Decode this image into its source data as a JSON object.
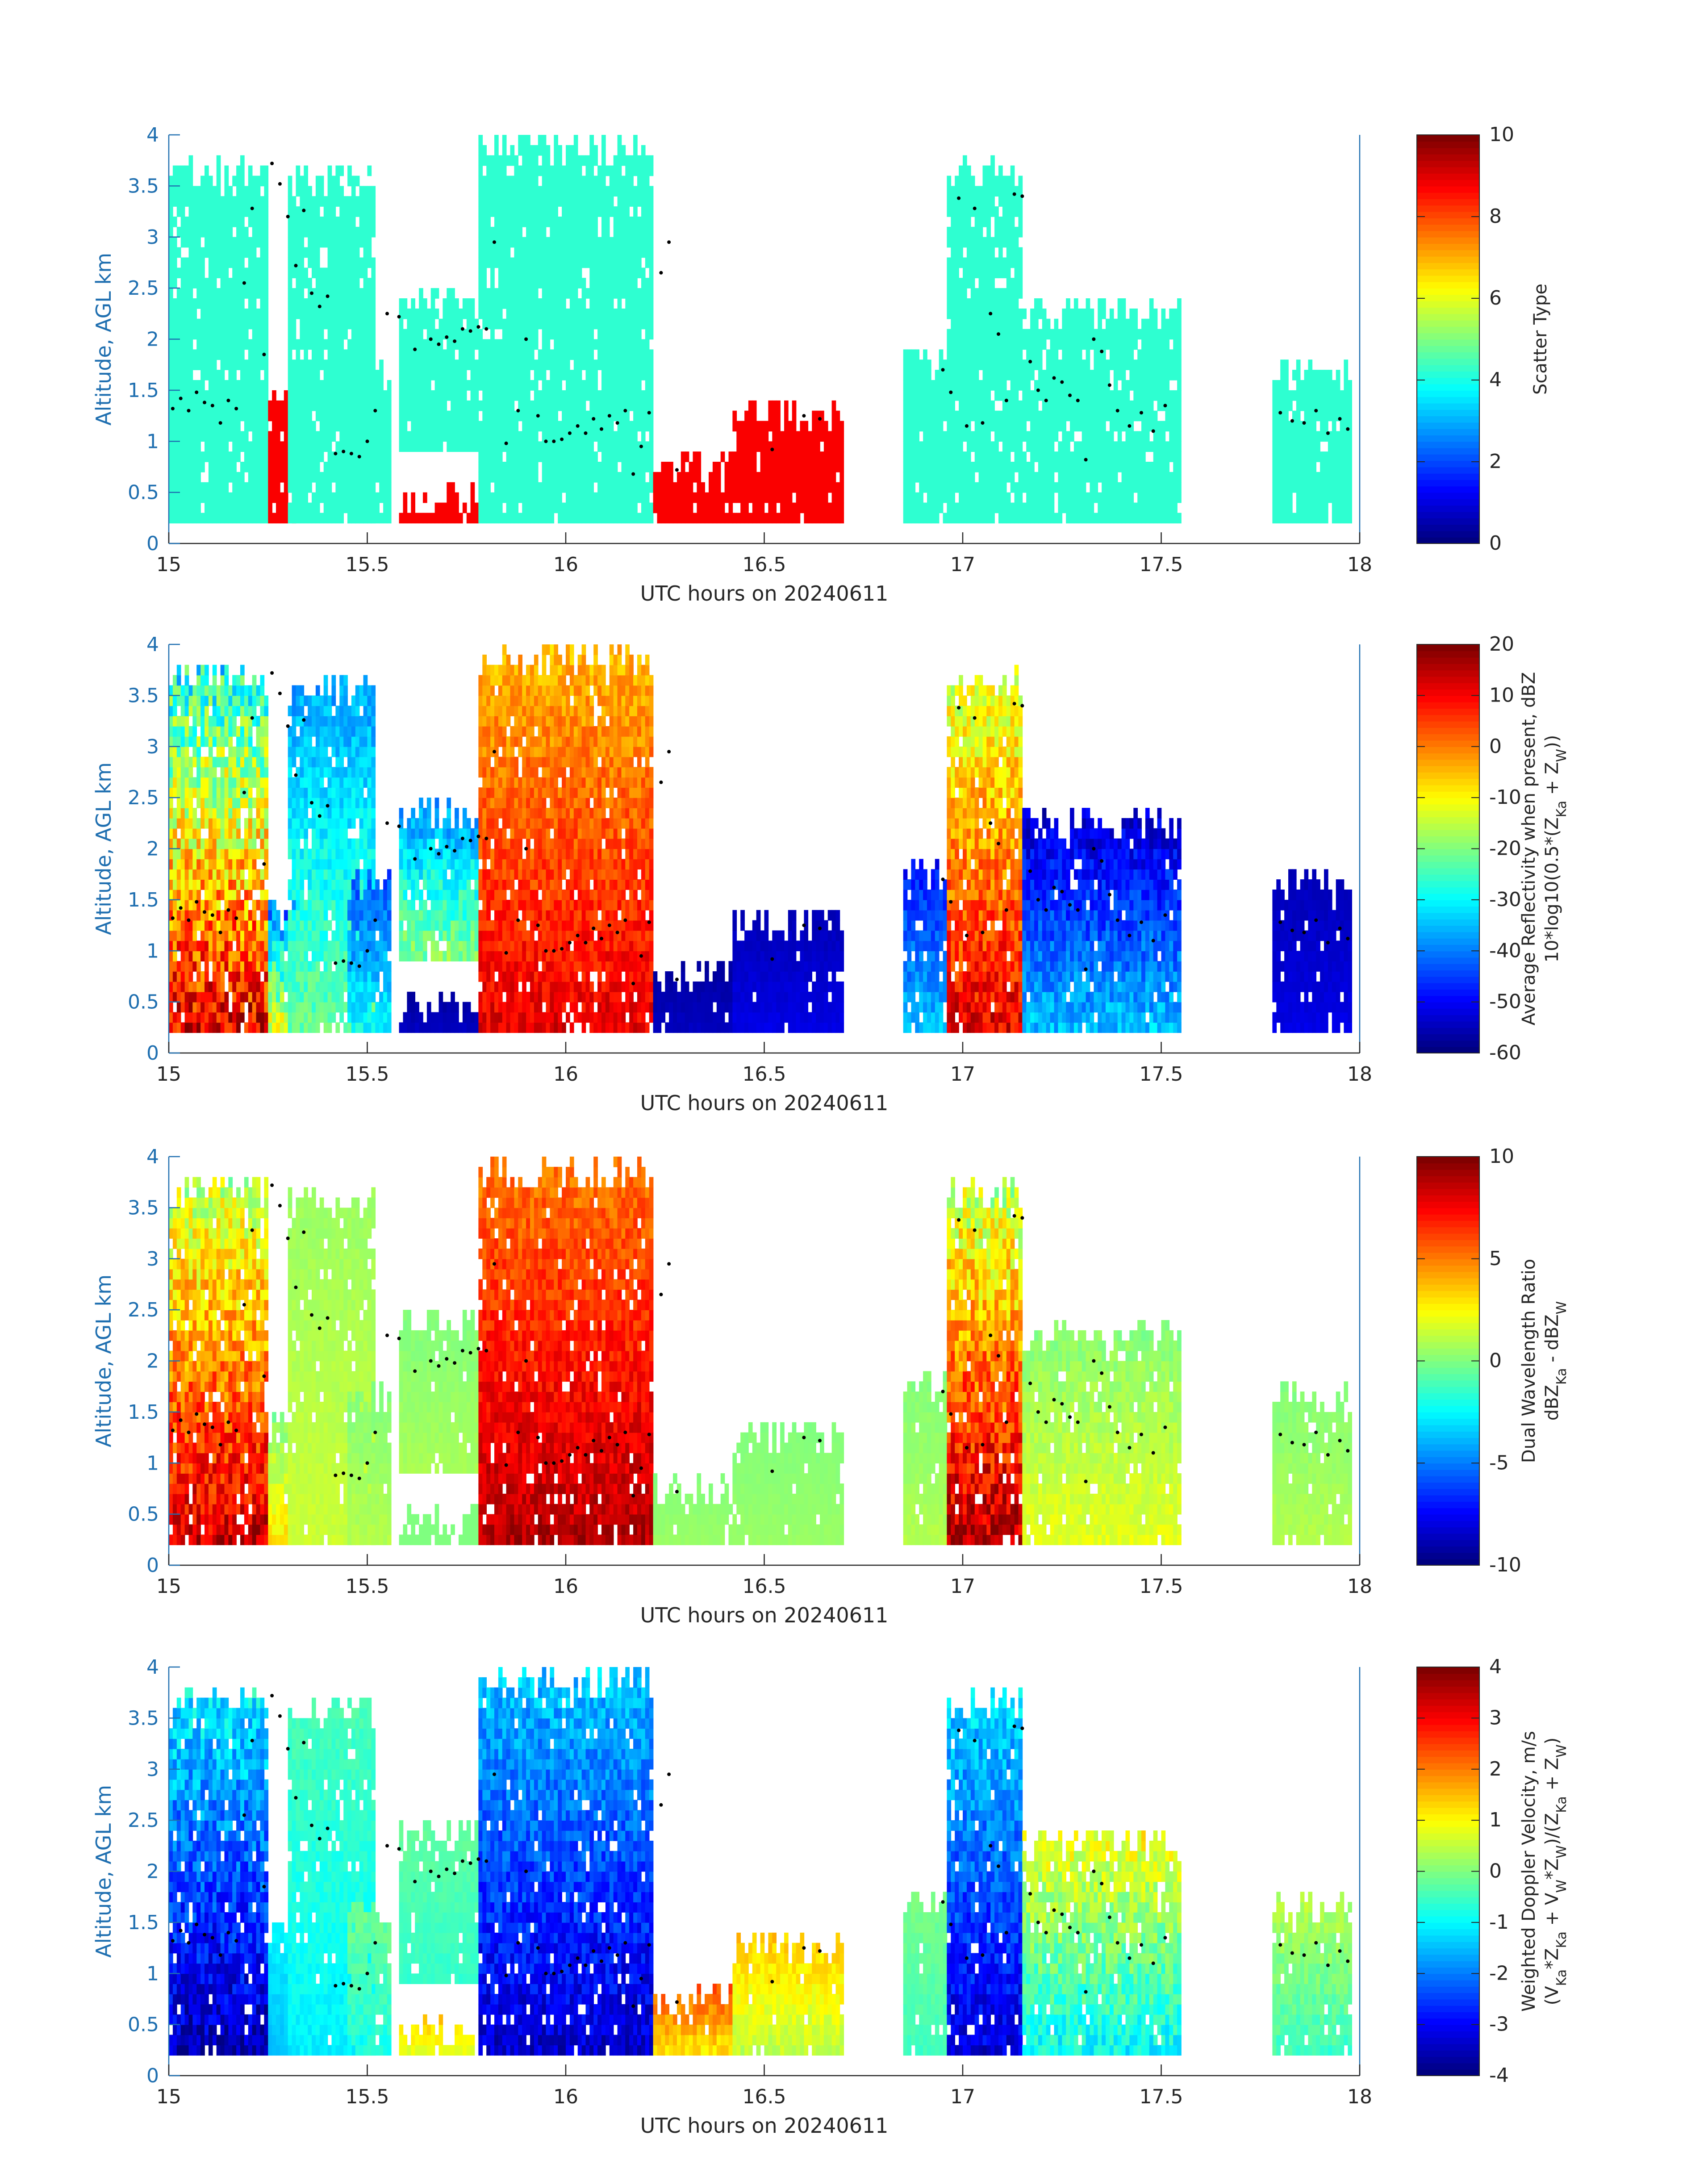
{
  "figure": {
    "background": "#ffffff",
    "axis_color": "#1f6fb0",
    "text_color": "#262626"
  },
  "chart_data": [
    {
      "type": "heatmap",
      "field": "scatter_type",
      "xlabel": "UTC hours on 20240611",
      "ylabel": "Altitude, AGL km",
      "xlim": [
        15,
        18
      ],
      "ylim": [
        0,
        4
      ],
      "xticks": [
        "15",
        "15.5",
        "16",
        "16.5",
        "17",
        "17.5",
        "18"
      ],
      "yticks": [
        "0",
        "0.5",
        "1",
        "1.5",
        "2",
        "2.5",
        "3",
        "3.5",
        "4"
      ],
      "colorbar": {
        "label": [
          "Scatter Type"
        ],
        "ticks": [
          "0",
          "2",
          "4",
          "6",
          "8",
          "10"
        ],
        "range": [
          0,
          10
        ],
        "colormap": "jet"
      },
      "grid": false
    },
    {
      "type": "heatmap",
      "field": "average_reflectivity",
      "xlabel": "UTC hours on 20240611",
      "ylabel": "Altitude, AGL km",
      "xlim": [
        15,
        18
      ],
      "ylim": [
        0,
        4
      ],
      "xticks": [
        "15",
        "15.5",
        "16",
        "16.5",
        "17",
        "17.5",
        "18"
      ],
      "yticks": [
        "0",
        "0.5",
        "1",
        "1.5",
        "2",
        "2.5",
        "3",
        "3.5",
        "4"
      ],
      "colorbar": {
        "label": [
          "Average Reflectivity when present, dBZ",
          "10*log10(0.5*(Z_Ka + Z_W))"
        ],
        "ticks": [
          "-60",
          "-50",
          "-40",
          "-30",
          "-20",
          "-10",
          "0",
          "10",
          "20"
        ],
        "range": [
          -60,
          20
        ],
        "colormap": "jet"
      },
      "grid": false
    },
    {
      "type": "heatmap",
      "field": "dual_wavelength_ratio",
      "xlabel": "UTC hours on 20240611",
      "ylabel": "Altitude, AGL km",
      "xlim": [
        15,
        18
      ],
      "ylim": [
        0,
        4
      ],
      "xticks": [
        "15",
        "15.5",
        "16",
        "16.5",
        "17",
        "17.5",
        "18"
      ],
      "yticks": [
        "0",
        "0.5",
        "1",
        "1.5",
        "2",
        "2.5",
        "3",
        "3.5",
        "4"
      ],
      "colorbar": {
        "label": [
          "Dual Wavelength Ratio",
          "dBZ_Ka - dBZ_W"
        ],
        "ticks": [
          "-10",
          "-5",
          "0",
          "5",
          "10"
        ],
        "range": [
          -10,
          10
        ],
        "colormap": "jet"
      },
      "grid": false
    },
    {
      "type": "heatmap",
      "field": "weighted_doppler_velocity",
      "xlabel": "UTC hours on 20240611",
      "ylabel": "Altitude, AGL km",
      "xlim": [
        15,
        18
      ],
      "ylim": [
        0,
        4
      ],
      "xticks": [
        "15",
        "15.5",
        "16",
        "16.5",
        "17",
        "17.5",
        "18"
      ],
      "yticks": [
        "0",
        "0.5",
        "1",
        "1.5",
        "2",
        "2.5",
        "3",
        "3.5",
        "4"
      ],
      "colorbar": {
        "label": [
          "Weighted Doppler Velocity, m/s",
          "(V_Ka*Z_Ka + V_W*Z_W)/(Z_Ka + Z_W)"
        ],
        "ticks": [
          "-4",
          "-3",
          "-2",
          "-1",
          "0",
          "1",
          "2",
          "3",
          "4"
        ],
        "range": [
          -4,
          4
        ],
        "colormap": "jet"
      },
      "grid": false
    }
  ],
  "cloud_regions": [
    {
      "t0": 15.0,
      "t1": 15.25,
      "base": 0.2,
      "top": 3.8,
      "scatter": 4.2,
      "refl": [
        12,
        -30
      ],
      "dwr": [
        8.5,
        1
      ],
      "vel": [
        -3.6,
        -1
      ]
    },
    {
      "t0": 15.25,
      "t1": 15.32,
      "base": 0.2,
      "top": 1.5,
      "scatter": 8.8,
      "refl": [
        -12,
        -45
      ],
      "dwr": [
        3,
        0
      ],
      "vel": [
        -1.5,
        -1
      ]
    },
    {
      "t0": 15.3,
      "t1": 15.52,
      "base": 0.2,
      "top": 3.7,
      "scatter": 4.2,
      "refl": [
        -22,
        -38
      ],
      "dwr": [
        1.5,
        0.5
      ],
      "vel": [
        -1.1,
        -0.4
      ]
    },
    {
      "t0": 15.45,
      "t1": 15.56,
      "base": 0.2,
      "top": 1.8,
      "scatter": 4.2,
      "refl": [
        -30,
        -45
      ],
      "dwr": [
        1,
        0
      ],
      "vel": [
        -0.8,
        0
      ]
    },
    {
      "t0": 15.58,
      "t1": 15.78,
      "base": 0.9,
      "top": 2.5,
      "scatter": 4.2,
      "refl": [
        -20,
        -40
      ],
      "dwr": [
        0.8,
        0
      ],
      "vel": [
        -0.6,
        -0.2
      ]
    },
    {
      "t0": 15.58,
      "t1": 15.78,
      "base": 0.2,
      "top": 0.55,
      "scatter": 8.8,
      "refl": [
        -55,
        -58
      ],
      "dwr": [
        0,
        0
      ],
      "vel": [
        0.8,
        1.5
      ]
    },
    {
      "t0": 15.78,
      "t1": 16.22,
      "base": 0.2,
      "top": 4.0,
      "scatter": 4.2,
      "refl": [
        12,
        -5
      ],
      "dwr": [
        9,
        5
      ],
      "vel": [
        -3.4,
        -1.4
      ]
    },
    {
      "t0": 16.22,
      "t1": 16.42,
      "base": 0.2,
      "top": 0.9,
      "scatter": 8.8,
      "refl": [
        -55,
        -58
      ],
      "dwr": [
        0.5,
        0
      ],
      "vel": [
        1.2,
        2.5
      ]
    },
    {
      "t0": 16.42,
      "t1": 16.7,
      "base": 0.2,
      "top": 1.4,
      "scatter": 8.8,
      "refl": [
        -52,
        -56
      ],
      "dwr": [
        0.5,
        0
      ],
      "vel": [
        0.5,
        1.5
      ]
    },
    {
      "t0": 16.85,
      "t1": 16.96,
      "base": 0.2,
      "top": 1.9,
      "scatter": 4.2,
      "refl": [
        -35,
        -50
      ],
      "dwr": [
        1,
        0
      ],
      "vel": [
        -0.5,
        0
      ]
    },
    {
      "t0": 16.96,
      "t1": 17.15,
      "base": 0.2,
      "top": 3.75,
      "scatter": 4.2,
      "refl": [
        12,
        -15
      ],
      "dwr": [
        9,
        1
      ],
      "vel": [
        -3.3,
        -1.2
      ]
    },
    {
      "t0": 17.15,
      "t1": 17.55,
      "base": 0.2,
      "top": 2.4,
      "scatter": 4.2,
      "refl": [
        -35,
        -55
      ],
      "dwr": [
        2,
        0
      ],
      "vel": [
        -1,
        1
      ]
    },
    {
      "t0": 17.78,
      "t1": 17.98,
      "base": 0.2,
      "top": 1.8,
      "scatter": 4.2,
      "refl": [
        -52,
        -56
      ],
      "dwr": [
        1,
        0
      ],
      "vel": [
        -0.5,
        0.5
      ]
    }
  ],
  "marker_points": [
    [
      15.01,
      1.32
    ],
    [
      15.03,
      1.42
    ],
    [
      15.05,
      1.3
    ],
    [
      15.07,
      1.48
    ],
    [
      15.09,
      1.38
    ],
    [
      15.11,
      1.35
    ],
    [
      15.13,
      1.18
    ],
    [
      15.15,
      1.4
    ],
    [
      15.17,
      1.32
    ],
    [
      15.19,
      2.55
    ],
    [
      15.21,
      3.28
    ],
    [
      15.24,
      1.85
    ],
    [
      15.26,
      3.72
    ],
    [
      15.28,
      3.52
    ],
    [
      15.3,
      3.2
    ],
    [
      15.32,
      2.72
    ],
    [
      15.34,
      3.26
    ],
    [
      15.36,
      2.45
    ],
    [
      15.38,
      2.32
    ],
    [
      15.4,
      2.42
    ],
    [
      15.42,
      0.88
    ],
    [
      15.44,
      0.9
    ],
    [
      15.46,
      0.88
    ],
    [
      15.48,
      0.85
    ],
    [
      15.5,
      1.0
    ],
    [
      15.52,
      1.3
    ],
    [
      15.55,
      2.25
    ],
    [
      15.58,
      2.22
    ],
    [
      15.62,
      1.9
    ],
    [
      15.66,
      2.0
    ],
    [
      15.68,
      1.95
    ],
    [
      15.7,
      2.02
    ],
    [
      15.72,
      1.98
    ],
    [
      15.74,
      2.1
    ],
    [
      15.76,
      2.08
    ],
    [
      15.78,
      2.12
    ],
    [
      15.8,
      2.1
    ],
    [
      15.82,
      2.95
    ],
    [
      15.85,
      0.98
    ],
    [
      15.88,
      1.3
    ],
    [
      15.9,
      2.0
    ],
    [
      15.93,
      1.25
    ],
    [
      15.95,
      1.0
    ],
    [
      15.97,
      1.0
    ],
    [
      15.99,
      1.02
    ],
    [
      16.01,
      1.08
    ],
    [
      16.03,
      1.15
    ],
    [
      16.05,
      1.08
    ],
    [
      16.07,
      1.22
    ],
    [
      16.09,
      1.12
    ],
    [
      16.11,
      1.25
    ],
    [
      16.13,
      1.18
    ],
    [
      16.15,
      1.3
    ],
    [
      16.17,
      0.68
    ],
    [
      16.19,
      0.95
    ],
    [
      16.21,
      1.28
    ],
    [
      16.24,
      2.65
    ],
    [
      16.26,
      2.95
    ],
    [
      16.28,
      0.72
    ],
    [
      16.52,
      0.92
    ],
    [
      16.6,
      1.25
    ],
    [
      16.64,
      1.22
    ],
    [
      16.95,
      1.7
    ],
    [
      16.97,
      1.48
    ],
    [
      16.99,
      3.38
    ],
    [
      17.01,
      1.15
    ],
    [
      17.03,
      3.28
    ],
    [
      17.05,
      1.18
    ],
    [
      17.07,
      2.25
    ],
    [
      17.09,
      2.05
    ],
    [
      17.11,
      1.4
    ],
    [
      17.13,
      3.42
    ],
    [
      17.15,
      3.4
    ],
    [
      17.17,
      1.78
    ],
    [
      17.19,
      1.5
    ],
    [
      17.21,
      1.4
    ],
    [
      17.23,
      1.62
    ],
    [
      17.25,
      1.58
    ],
    [
      17.27,
      1.45
    ],
    [
      17.29,
      1.4
    ],
    [
      17.31,
      0.82
    ],
    [
      17.33,
      2.0
    ],
    [
      17.35,
      1.88
    ],
    [
      17.37,
      1.55
    ],
    [
      17.39,
      1.3
    ],
    [
      17.42,
      1.15
    ],
    [
      17.45,
      1.28
    ],
    [
      17.48,
      1.1
    ],
    [
      17.51,
      1.35
    ],
    [
      17.8,
      1.28
    ],
    [
      17.83,
      1.2
    ],
    [
      17.86,
      1.18
    ],
    [
      17.89,
      1.3
    ],
    [
      17.92,
      1.08
    ],
    [
      17.95,
      1.22
    ],
    [
      17.97,
      1.12
    ]
  ]
}
